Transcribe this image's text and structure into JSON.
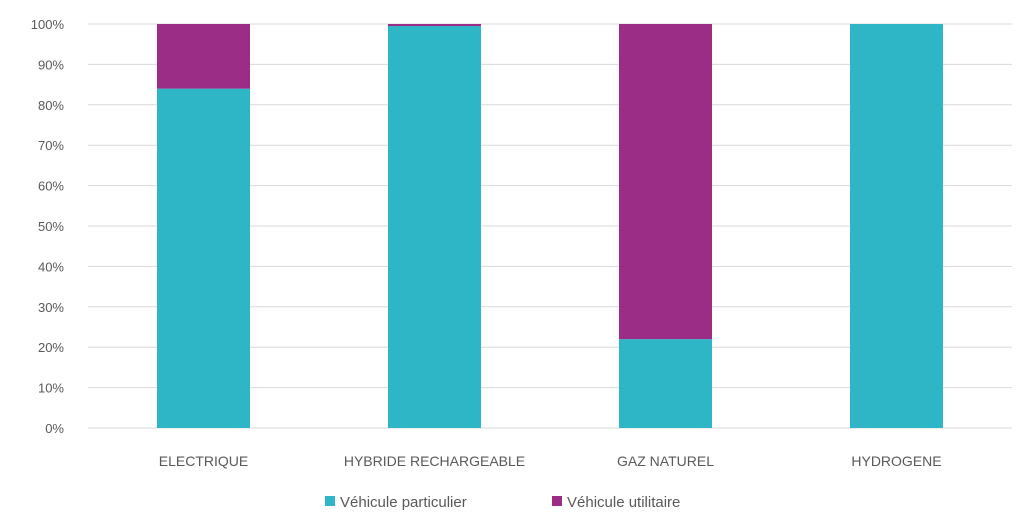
{
  "chart_data": {
    "type": "bar",
    "stacked": true,
    "percent": true,
    "categories": [
      "ELECTRIQUE",
      "HYBRIDE RECHARGEABLE",
      "GAZ NATUREL",
      "HYDROGENE"
    ],
    "series": [
      {
        "name": "Véhicule particulier",
        "color": "#2EB6C6",
        "values": [
          84,
          99.5,
          22,
          100
        ]
      },
      {
        "name": "Véhicule utilitaire",
        "color": "#9B2D87",
        "values": [
          16,
          0.5,
          78,
          0
        ]
      }
    ],
    "yticks": [
      "0%",
      "10%",
      "20%",
      "30%",
      "40%",
      "50%",
      "60%",
      "70%",
      "80%",
      "90%",
      "100%"
    ],
    "ylim": [
      0,
      100
    ],
    "grid": true,
    "legend_position": "bottom",
    "gridline_color": "#D9D9D9"
  }
}
